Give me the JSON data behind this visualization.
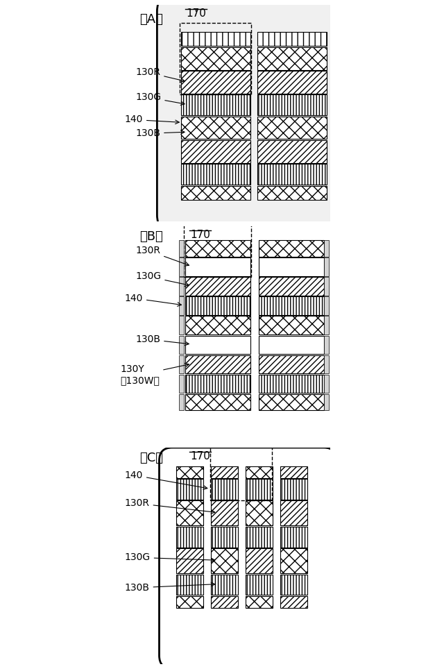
{
  "bg_color": "#ffffff",
  "panels": [
    "A",
    "B",
    "C"
  ],
  "panel_label_fontsize": 13,
  "annotation_fontsize": 10,
  "ref_fontsize": 11
}
